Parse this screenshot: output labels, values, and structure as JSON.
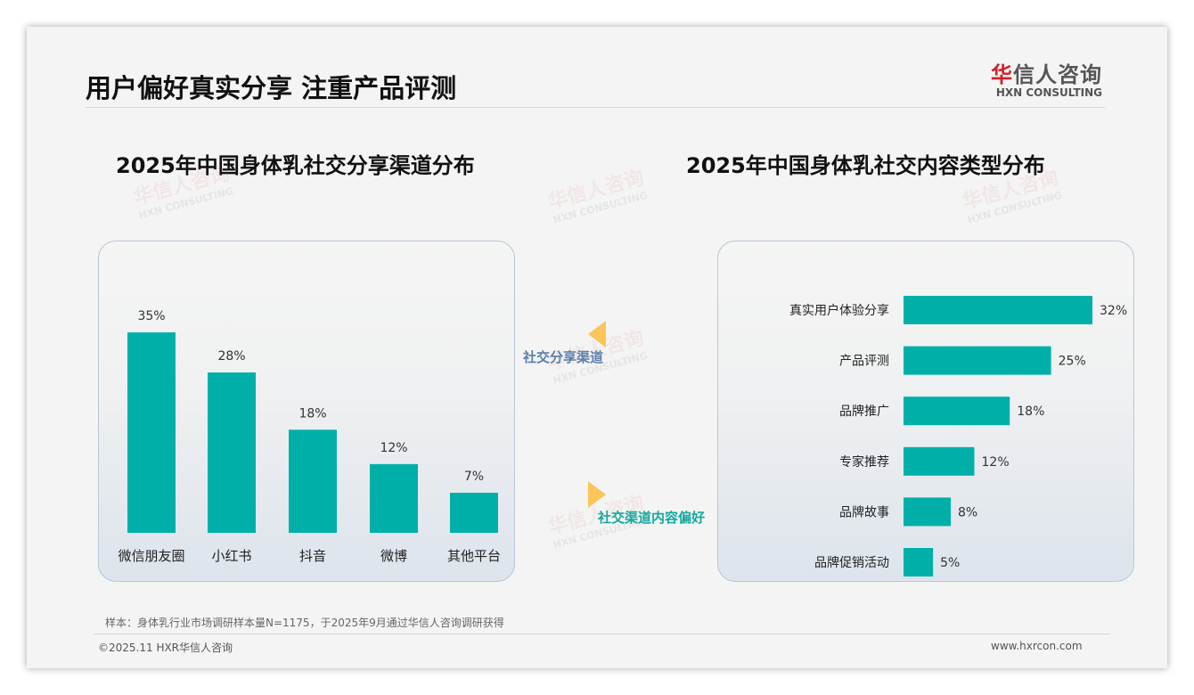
{
  "header": {
    "title": "用户偏好真实分享 注重产品评测",
    "logo_cn_brand": "华",
    "logo_cn_rest": "信人咨询",
    "logo_en": "HXN CONSULTING"
  },
  "watermark": {
    "cn": "华信人咨询",
    "en": "HXN CONSULTING"
  },
  "colors": {
    "bar": "#00b0a8",
    "arrow": "#fcc55a",
    "label_left": "#5b7fa8",
    "label_right": "#13a89e"
  },
  "middle": {
    "left_label": "社交分享渠道",
    "right_label": "社交渠道内容偏好"
  },
  "chart_data": [
    {
      "type": "bar",
      "title": "2025年中国身体乳社交分享渠道分布",
      "categories": [
        "微信朋友圈",
        "小红书",
        "抖音",
        "微博",
        "其他平台"
      ],
      "values": [
        35,
        28,
        18,
        12,
        7
      ],
      "labels": [
        "35%",
        "28%",
        "18%",
        "12%",
        "7%"
      ],
      "unit": "%",
      "ylim": [
        0,
        35
      ]
    },
    {
      "type": "bar",
      "orientation": "horizontal",
      "title": "2025年中国身体乳社交内容类型分布",
      "categories": [
        "真实用户体验分享",
        "产品评测",
        "品牌推广",
        "专家推荐",
        "品牌故事",
        "品牌促销活动"
      ],
      "values": [
        32,
        25,
        18,
        12,
        8,
        5
      ],
      "labels": [
        "32%",
        "25%",
        "18%",
        "12%",
        "8%",
        "5%"
      ],
      "unit": "%",
      "xlim": [
        0,
        32
      ]
    }
  ],
  "footer": {
    "note": "样本：身体乳行业市场调研样本量N=1175，于2025年9月通过华信人咨询调研获得",
    "copyright": "©2025.11 HXR华信人咨询",
    "url": "www.hxrcon.com"
  }
}
